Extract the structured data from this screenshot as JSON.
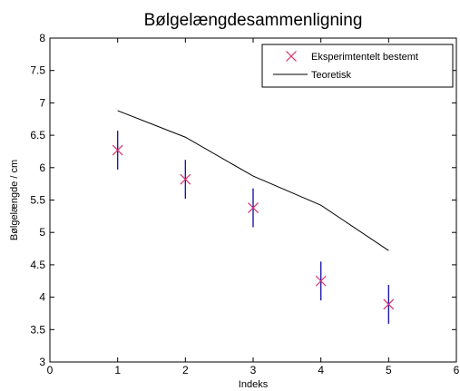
{
  "chart_data": {
    "type": "scatter",
    "title": "Bølgelængdesammenligning",
    "xlabel": "Indeks",
    "ylabel": "Bølgelængde / cm",
    "xlim": [
      0,
      6
    ],
    "ylim": [
      3,
      8
    ],
    "xticks": [
      "0",
      "1",
      "2",
      "3",
      "4",
      "5",
      "6"
    ],
    "yticks": [
      "3",
      "3.5",
      "4",
      "4.5",
      "5",
      "5.5",
      "6",
      "6.5",
      "7",
      "7.5",
      "8"
    ],
    "grid": false,
    "legend_position": "top-right",
    "series": [
      {
        "name": "Eksperimtentelt bestemt",
        "kind": "markers-with-errorbars",
        "marker": "x",
        "marker_color": "#d62f6e",
        "errorbar_color": "#1a1aa8",
        "x": [
          1,
          2,
          3,
          4,
          5
        ],
        "y": [
          6.27,
          5.82,
          5.38,
          4.25,
          3.89
        ],
        "err": [
          0.3,
          0.3,
          0.3,
          0.3,
          0.3
        ]
      },
      {
        "name": "Teoretisk",
        "kind": "line",
        "line_color": "#000000",
        "x": [
          1,
          2,
          3,
          4,
          5
        ],
        "y": [
          6.88,
          6.47,
          5.87,
          5.42,
          4.72
        ]
      }
    ]
  }
}
